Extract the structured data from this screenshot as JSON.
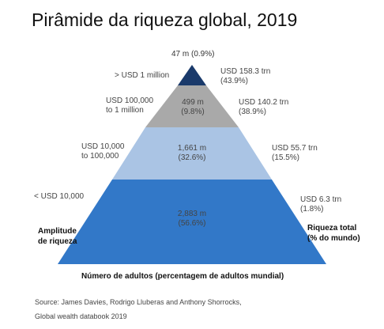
{
  "chart_data": {
    "type": "table",
    "title": "Pirâmide da riqueza global, 2019",
    "levels": [
      {
        "wealth_range": "> USD 1 million",
        "adults": "47 m (0.9%)",
        "total_wealth": "USD 158.3 trn",
        "total_wealth_share": "(43.9%)",
        "color": "#1a3a6b"
      },
      {
        "wealth_range": "USD 100,000",
        "wealth_range_line2": "to 1 million",
        "adults": "499 m",
        "adults_share": "(9.8%)",
        "total_wealth": "USD 140.2 trn",
        "total_wealth_share": "(38.9%)",
        "color": "#a9a9a9"
      },
      {
        "wealth_range": "USD 10,000",
        "wealth_range_line2": "to 100,000",
        "adults": "1,661 m",
        "adults_share": "(32.6%)",
        "total_wealth": "USD 55.7 trn",
        "total_wealth_share": "(15.5%)",
        "color": "#aac4e4"
      },
      {
        "wealth_range": "< USD 10,000",
        "adults": "2,883 m",
        "adults_share": "(56.6%)",
        "total_wealth": "USD 6.3 trn",
        "total_wealth_share": "(1.8%)",
        "color": "#3278c8"
      }
    ],
    "left_axis_label": "Amplitude\nde riqueza",
    "right_axis_label": "Riqueza total\n(% do mundo)",
    "bottom_label": "Número de adultos (percentagem de adultos mundial)",
    "source": "Source: James Davies, Rodrigo Lluberas and Anthony Shorrocks,",
    "source_line2": "Global wealth databook 2019"
  }
}
